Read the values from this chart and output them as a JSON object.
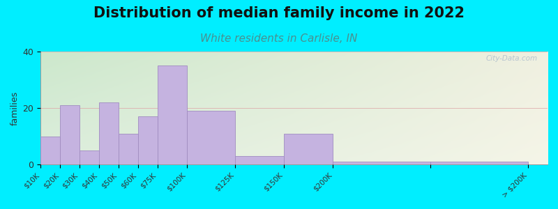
{
  "title": "Distribution of median family income in 2022",
  "subtitle": "White residents in Carlisle, IN",
  "ylabel": "families",
  "bar_left_edges": [
    0,
    10,
    20,
    30,
    40,
    50,
    60,
    75,
    100,
    125,
    150,
    200
  ],
  "bar_widths": [
    10,
    10,
    10,
    10,
    10,
    10,
    15,
    25,
    25,
    25,
    50,
    50
  ],
  "values": [
    10,
    21,
    5,
    22,
    11,
    17,
    35,
    19,
    3,
    11,
    1,
    1
  ],
  "tick_positions": [
    0,
    10,
    20,
    30,
    40,
    50,
    60,
    75,
    100,
    125,
    150,
    200,
    250
  ],
  "tick_labels": [
    "$10K",
    "$20K",
    "$30K",
    "$40K",
    "$50K",
    "$60K",
    "$75K",
    "$100K",
    "$125K",
    "$150K",
    "$200K",
    "",
    "> $200K"
  ],
  "bar_color": "#c5b3e0",
  "bar_edge_color": "#a08cc0",
  "background_outer": "#00eeff",
  "title_fontsize": 15,
  "subtitle_fontsize": 11,
  "subtitle_color": "#4a9090",
  "ylabel_fontsize": 9,
  "tick_label_fontsize": 7.5,
  "ylim": [
    0,
    40
  ],
  "yticks": [
    0,
    20,
    40
  ],
  "watermark_text": "City-Data.com",
  "watermark_color": "#aabbcc",
  "grid_color": "#ddaaaa",
  "xlim": [
    0,
    260
  ]
}
